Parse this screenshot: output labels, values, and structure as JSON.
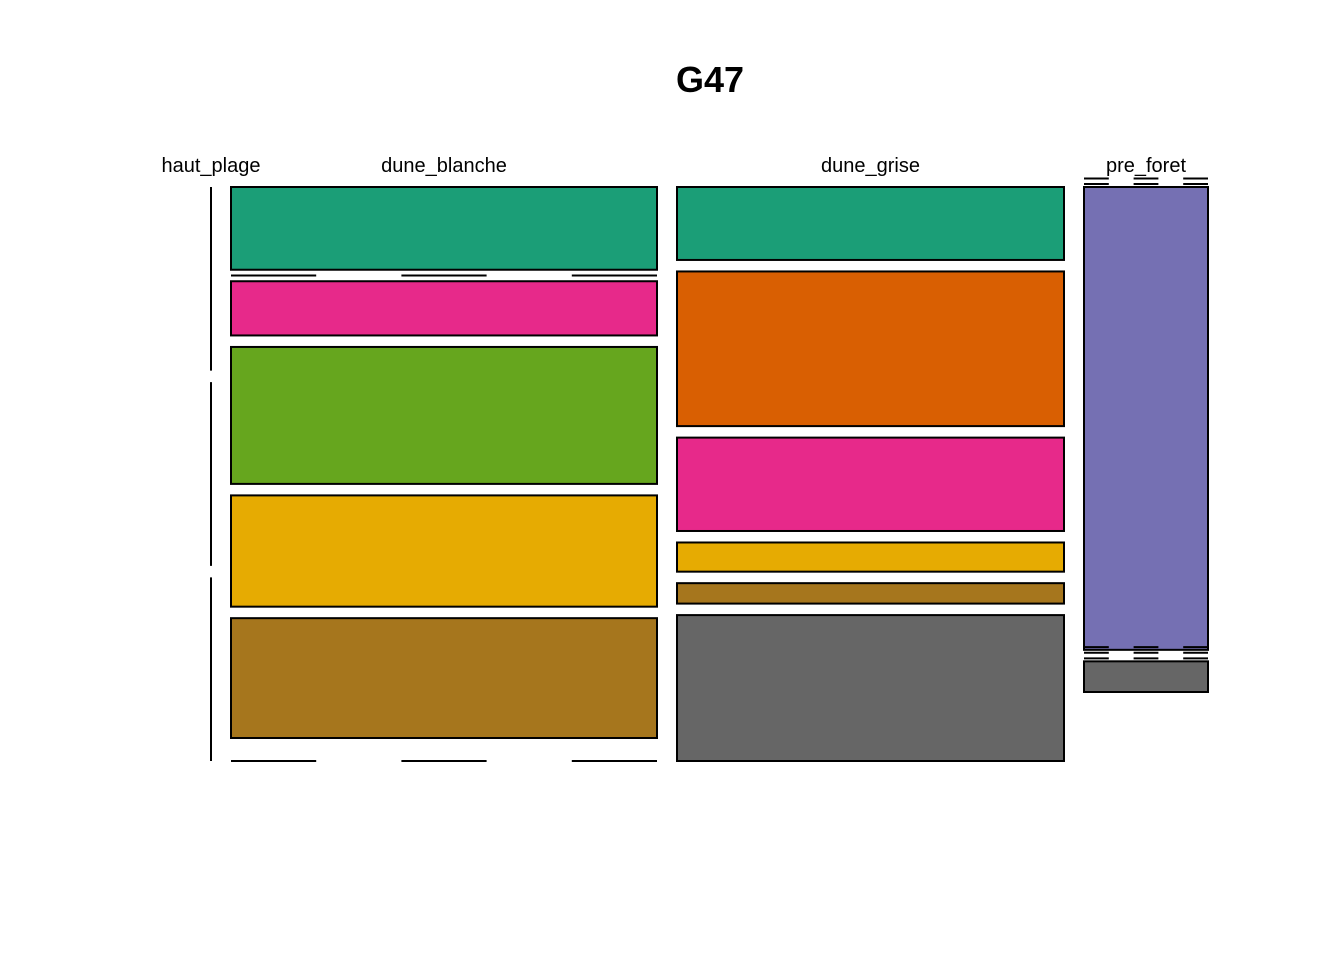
{
  "chart_data": {
    "type": "mosaic",
    "title": "G47",
    "columns": [
      {
        "label": "haut_plage",
        "cells": [
          {
            "value": 0,
            "color": "#1B9E77"
          },
          {
            "value": 0,
            "color": "#D95F02"
          },
          {
            "value": 0,
            "color": "#E7298A"
          },
          {
            "value": 0,
            "color": "#66A61E"
          },
          {
            "value": 0,
            "color": "#E6AB02"
          },
          {
            "value": 0,
            "color": "#A6761D"
          },
          {
            "value": 0,
            "color": "#666666"
          }
        ]
      },
      {
        "label": "dune_blanche",
        "cells": [
          {
            "value": 14.5,
            "color": "#1B9E77"
          },
          {
            "value": 0,
            "color": "#D95F02"
          },
          {
            "value": 9.5,
            "color": "#E7298A"
          },
          {
            "value": 24,
            "color": "#66A61E"
          },
          {
            "value": 19.5,
            "color": "#E6AB02"
          },
          {
            "value": 21,
            "color": "#A6761D"
          },
          {
            "value": 0,
            "color": "#666666"
          }
        ]
      },
      {
        "label": "dune_grise",
        "cells": [
          {
            "value": 12.5,
            "color": "#1B9E77"
          },
          {
            "value": 26.5,
            "color": "#D95F02"
          },
          {
            "value": 16,
            "color": "#E7298A"
          },
          {
            "value": 5,
            "color": "#E6AB02"
          },
          {
            "value": 3.5,
            "color": "#A6761D"
          },
          {
            "value": 25,
            "color": "#666666"
          }
        ]
      },
      {
        "label": "pre_foret",
        "cells": [
          {
            "value": 0,
            "color": "#1B9E77"
          },
          {
            "value": 0,
            "color": "#D95F02"
          },
          {
            "value": 83,
            "color": "#7570B3"
          },
          {
            "value": 0,
            "color": "#E7298A"
          },
          {
            "value": 0,
            "color": "#66A61E"
          },
          {
            "value": 0,
            "color": "#E6AB02"
          },
          {
            "value": 0,
            "color": "#A6761D"
          },
          {
            "value": 5.5,
            "color": "#666666"
          }
        ]
      }
    ]
  }
}
